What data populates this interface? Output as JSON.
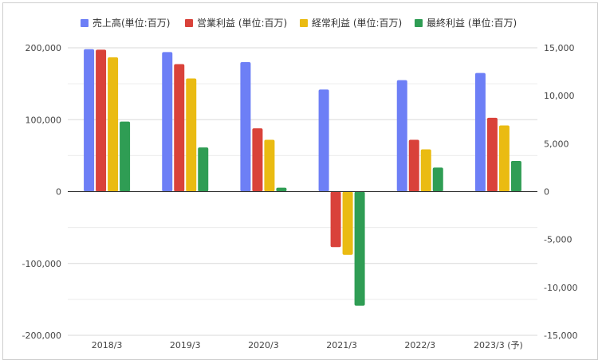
{
  "chart_data": {
    "type": "bar",
    "categories": [
      "2018/3",
      "2019/3",
      "2020/3",
      "2021/3",
      "2022/3",
      "2023/3 (予)"
    ],
    "series": [
      {
        "name": "売上高(単位:百万)",
        "axis": "left",
        "color": "#6d7ff6",
        "values": [
          198000,
          194000,
          180000,
          142000,
          155000,
          165000
        ]
      },
      {
        "name": "営業利益 (単位:百万)",
        "axis": "right",
        "color": "#d9423a",
        "values": [
          14800,
          13300,
          6600,
          -5800,
          5400,
          7700
        ]
      },
      {
        "name": "経常利益 (単位:百万)",
        "axis": "right",
        "color": "#eabb12",
        "values": [
          14000,
          11800,
          5400,
          -6600,
          4400,
          6900
        ]
      },
      {
        "name": "最終利益 (単位:百万)",
        "axis": "right",
        "color": "#2f9d54",
        "values": [
          7300,
          4600,
          400,
          -11900,
          2500,
          3200
        ]
      }
    ],
    "left_axis": {
      "ylim": [
        -200000,
        200000
      ],
      "ticks": [
        200000,
        100000,
        0,
        -100000,
        -200000
      ],
      "tick_labels": [
        "200,000",
        "100,000",
        "0",
        "-100,000",
        "-200,000"
      ]
    },
    "right_axis": {
      "ylim": [
        -15000,
        15000
      ],
      "ticks": [
        15000,
        10000,
        5000,
        0,
        -5000,
        -10000,
        -15000
      ],
      "tick_labels": [
        "15,000",
        "10,000",
        "5,000",
        "0",
        "-5,000",
        "-10,000",
        "-15,000"
      ]
    },
    "title": "",
    "xlabel": "",
    "ylabel": "",
    "grid": true,
    "legend": "top"
  }
}
